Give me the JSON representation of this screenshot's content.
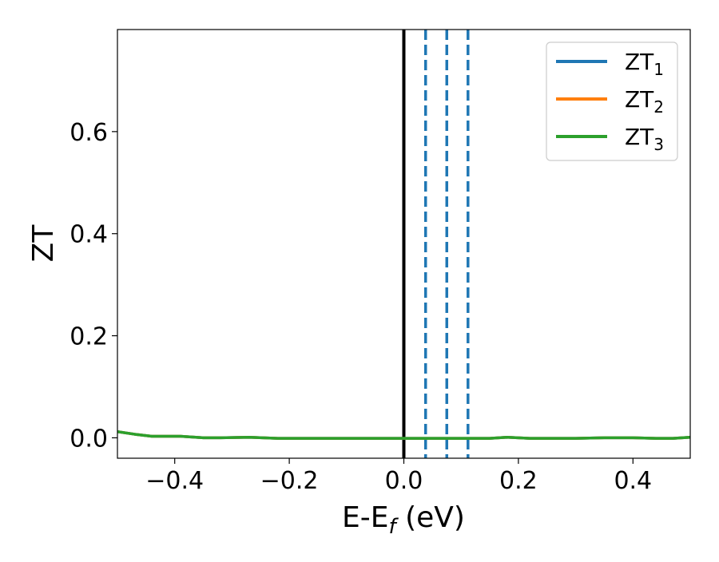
{
  "chart_data": {
    "type": "line",
    "title": "",
    "xlabel": "E-E",
    "xlabel_sub": "f",
    "xlabel_suffix": " (eV)",
    "ylabel": "ZT",
    "xlim": [
      -0.5,
      0.5
    ],
    "ylim": [
      -0.04,
      0.8
    ],
    "xticks": [
      -0.4,
      -0.2,
      0.0,
      0.2,
      0.4
    ],
    "xtick_labels": [
      "−0.4",
      "−0.2",
      "0.0",
      "0.2",
      "0.4"
    ],
    "yticks": [
      0.0,
      0.2,
      0.4,
      0.6
    ],
    "ytick_labels": [
      "0.0",
      "0.2",
      "0.4",
      "0.6"
    ],
    "grid": false,
    "legend_position": "top-right",
    "series": [
      {
        "name": "ZT",
        "name_sub": "1",
        "color": "#1f77b4",
        "x": [
          -0.5,
          -0.47,
          -0.44,
          -0.39,
          -0.35,
          -0.32,
          -0.27,
          -0.22,
          -0.16,
          -0.1,
          -0.04,
          0.0,
          0.05,
          0.1,
          0.15,
          0.18,
          0.22,
          0.26,
          0.3,
          0.35,
          0.4,
          0.44,
          0.47,
          0.5
        ],
        "values": [
          0.012,
          0.007,
          0.003,
          0.003,
          0.0,
          0.0,
          0.001,
          -0.001,
          -0.001,
          -0.001,
          -0.001,
          -0.001,
          -0.001,
          -0.001,
          -0.001,
          0.001,
          -0.001,
          -0.001,
          -0.001,
          0.0,
          0.0,
          -0.001,
          -0.001,
          0.001
        ]
      },
      {
        "name": "ZT",
        "name_sub": "2",
        "color": "#ff7f0e",
        "x": [
          -0.5,
          -0.47,
          -0.44,
          -0.39,
          -0.35,
          -0.32,
          -0.27,
          -0.22,
          -0.16,
          -0.1,
          -0.04,
          0.0,
          0.05,
          0.1,
          0.15,
          0.18,
          0.22,
          0.26,
          0.3,
          0.35,
          0.4,
          0.44,
          0.47,
          0.5
        ],
        "values": [
          0.012,
          0.007,
          0.003,
          0.003,
          0.0,
          0.0,
          0.001,
          -0.001,
          -0.001,
          -0.001,
          -0.001,
          -0.001,
          -0.001,
          -0.001,
          -0.001,
          0.001,
          -0.001,
          -0.001,
          -0.001,
          0.0,
          0.0,
          -0.001,
          -0.001,
          0.001
        ]
      },
      {
        "name": "ZT",
        "name_sub": "3",
        "color": "#2ca02c",
        "x": [
          -0.5,
          -0.47,
          -0.44,
          -0.39,
          -0.35,
          -0.32,
          -0.27,
          -0.22,
          -0.16,
          -0.1,
          -0.04,
          0.0,
          0.05,
          0.1,
          0.15,
          0.18,
          0.22,
          0.26,
          0.3,
          0.35,
          0.4,
          0.44,
          0.47,
          0.5
        ],
        "values": [
          0.012,
          0.007,
          0.003,
          0.003,
          0.0,
          0.0,
          0.001,
          -0.001,
          -0.001,
          -0.001,
          -0.001,
          -0.001,
          -0.001,
          -0.001,
          -0.001,
          0.001,
          -0.001,
          -0.001,
          -0.001,
          0.0,
          0.0,
          -0.001,
          -0.001,
          0.001
        ]
      }
    ],
    "reference_lines": [
      {
        "x": 0.0,
        "color": "#000000",
        "style": "solid"
      },
      {
        "x": 0.038,
        "color": "#1f77b4",
        "style": "dashed"
      },
      {
        "x": 0.075,
        "color": "#1f77b4",
        "style": "dashed"
      },
      {
        "x": 0.112,
        "color": "#1f77b4",
        "style": "dashed"
      }
    ]
  }
}
